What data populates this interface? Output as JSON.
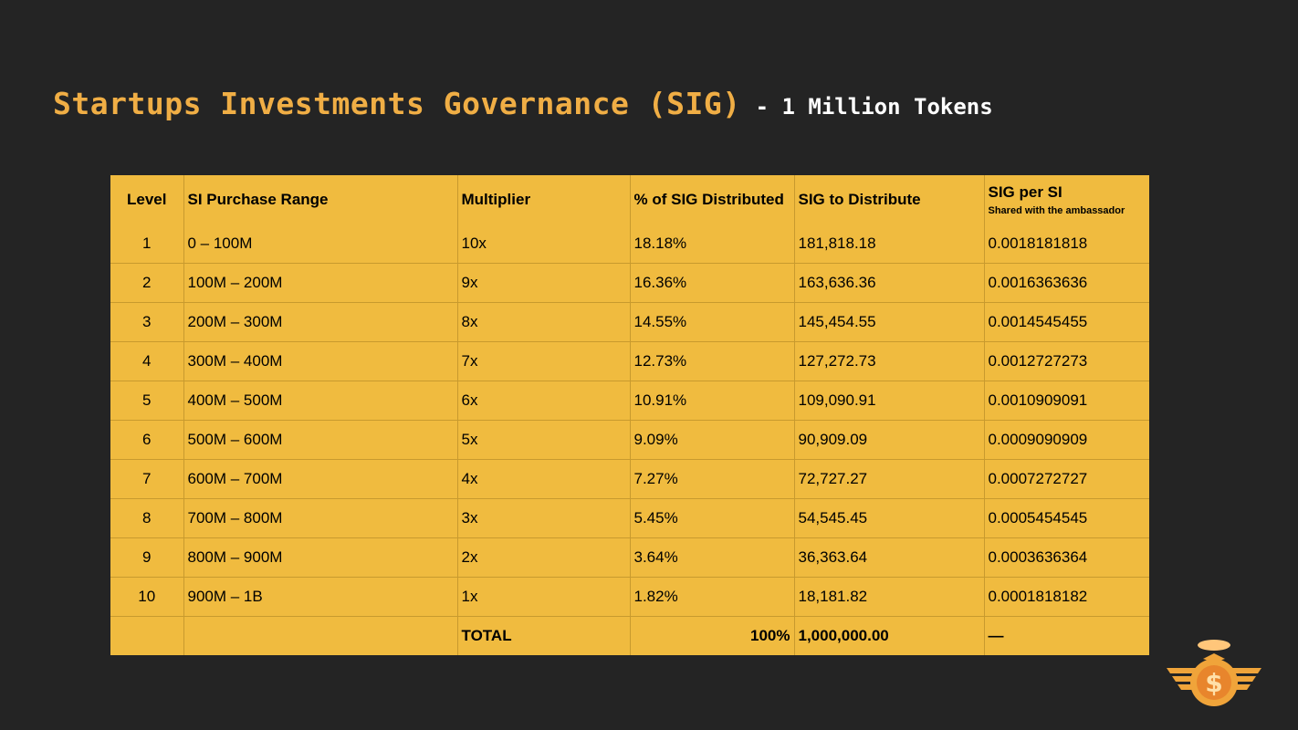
{
  "slide": {
    "title": "Startups Investments Governance (SIG)",
    "subtitle": "- 1 Million Tokens"
  },
  "table": {
    "headers": {
      "level": "Level",
      "range": "SI Purchase Range",
      "multiplier": "Multiplier",
      "percent": "% of SIG Distributed",
      "distribute": "SIG to Distribute",
      "per_si": "SIG per SI",
      "per_si_note": "Shared with the ambassador"
    },
    "rows": [
      {
        "level": "1",
        "range": "0 – 100M",
        "multiplier": "10x",
        "percent": "18.18%",
        "distribute": "181,818.18",
        "per_si": "0.0018181818"
      },
      {
        "level": "2",
        "range": "100M – 200M",
        "multiplier": "9x",
        "percent": "16.36%",
        "distribute": "163,636.36",
        "per_si": "0.0016363636"
      },
      {
        "level": "3",
        "range": "200M – 300M",
        "multiplier": "8x",
        "percent": "14.55%",
        "distribute": "145,454.55",
        "per_si": "0.0014545455"
      },
      {
        "level": "4",
        "range": "300M – 400M",
        "multiplier": "7x",
        "percent": "12.73%",
        "distribute": "127,272.73",
        "per_si": "0.0012727273"
      },
      {
        "level": "5",
        "range": "400M – 500M",
        "multiplier": "6x",
        "percent": "10.91%",
        "distribute": "109,090.91",
        "per_si": "0.0010909091"
      },
      {
        "level": "6",
        "range": "500M – 600M",
        "multiplier": "5x",
        "percent": "9.09%",
        "distribute": "90,909.09",
        "per_si": "0.0009090909"
      },
      {
        "level": "7",
        "range": "600M – 700M",
        "multiplier": "4x",
        "percent": "7.27%",
        "distribute": "72,727.27",
        "per_si": "0.0007272727"
      },
      {
        "level": "8",
        "range": "700M – 800M",
        "multiplier": "3x",
        "percent": "5.45%",
        "distribute": "54,545.45",
        "per_si": "0.0005454545"
      },
      {
        "level": "9",
        "range": "800M – 900M",
        "multiplier": "2x",
        "percent": "3.64%",
        "distribute": "36,363.64",
        "per_si": "0.0003636364"
      },
      {
        "level": "10",
        "range": "900M – 1B",
        "multiplier": "1x",
        "percent": "1.82%",
        "distribute": "18,181.82",
        "per_si": "0.0001818182"
      }
    ],
    "total": {
      "label": "TOTAL",
      "percent": "100%",
      "distribute": "1,000,000.00",
      "per_si": "—"
    }
  },
  "colors": {
    "background": "#242424",
    "title": "#f0ae45",
    "subtitle": "#ffffff",
    "table_fill": "#f0bb3f",
    "table_rule": "#c89a2e",
    "logo_main": "#f0a43a",
    "logo_accent": "#ffc67a"
  },
  "icons": {
    "logo": "winged-dollar-coin-with-halo-icon"
  }
}
